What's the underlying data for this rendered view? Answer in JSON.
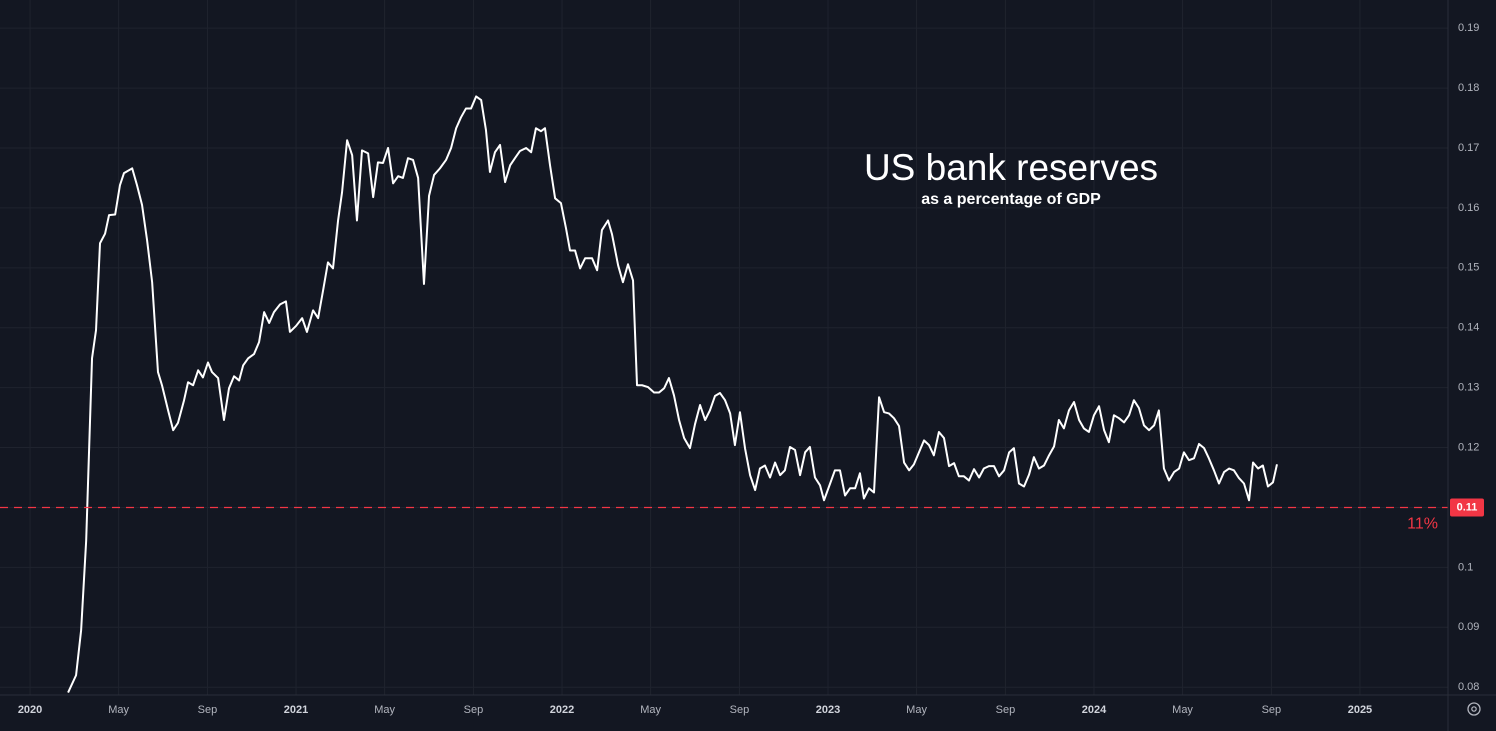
{
  "chart_data": {
    "type": "line",
    "title": "US bank reserves",
    "subtitle": "as a percentage of GDP",
    "x": [
      2020.143,
      2020.173,
      2020.192,
      2020.211,
      2020.233,
      2020.248,
      2020.263,
      2020.282,
      2020.297,
      2020.32,
      2020.338,
      2020.353,
      2020.384,
      2020.402,
      2020.421,
      2020.44,
      2020.459,
      2020.481,
      2020.496,
      2020.519,
      2020.538,
      2020.556,
      2020.579,
      2020.594,
      2020.613,
      2020.632,
      2020.65,
      2020.669,
      2020.684,
      2020.707,
      2020.729,
      2020.748,
      2020.767,
      2020.786,
      2020.801,
      2020.82,
      2020.842,
      2020.861,
      2020.88,
      2020.899,
      2020.917,
      2020.94,
      2020.962,
      2020.977,
      2021.0,
      2021.023,
      2021.041,
      2021.064,
      2021.083,
      2021.102,
      2021.12,
      2021.139,
      2021.158,
      2021.173,
      2021.192,
      2021.211,
      2021.229,
      2021.248,
      2021.271,
      2021.29,
      2021.308,
      2021.327,
      2021.346,
      2021.365,
      2021.384,
      2021.402,
      2021.421,
      2021.44,
      2021.459,
      2021.481,
      2021.5,
      2021.519,
      2021.541,
      2021.564,
      2021.583,
      2021.602,
      2021.62,
      2021.639,
      2021.658,
      2021.677,
      2021.696,
      2021.714,
      2021.729,
      2021.748,
      2021.767,
      2021.786,
      2021.805,
      2021.823,
      2021.842,
      2021.865,
      2021.884,
      2021.902,
      2021.921,
      2021.936,
      2021.955,
      2021.974,
      2021.996,
      2022.015,
      2022.03,
      2022.049,
      2022.068,
      2022.087,
      2022.113,
      2022.132,
      2022.15,
      2022.173,
      2022.188,
      2022.211,
      2022.229,
      2022.248,
      2022.267,
      2022.282,
      2022.301,
      2022.323,
      2022.346,
      2022.365,
      2022.384,
      2022.402,
      2022.421,
      2022.44,
      2022.459,
      2022.481,
      2022.5,
      2022.519,
      2022.538,
      2022.556,
      2022.575,
      2022.594,
      2022.613,
      2022.632,
      2022.65,
      2022.669,
      2022.688,
      2022.707,
      2022.726,
      2022.744,
      2022.763,
      2022.782,
      2022.801,
      2022.82,
      2022.838,
      2022.857,
      2022.876,
      2022.895,
      2022.914,
      2022.932,
      2022.951,
      2022.97,
      2022.985,
      2023.008,
      2023.026,
      2023.045,
      2023.064,
      2023.083,
      2023.102,
      2023.12,
      2023.135,
      2023.154,
      2023.173,
      2023.192,
      2023.211,
      2023.229,
      2023.248,
      2023.267,
      2023.286,
      2023.305,
      2023.323,
      2023.342,
      2023.361,
      2023.38,
      2023.398,
      2023.417,
      2023.436,
      2023.455,
      2023.474,
      2023.492,
      2023.511,
      2023.53,
      2023.549,
      2023.568,
      2023.586,
      2023.605,
      2023.624,
      2023.643,
      2023.662,
      2023.681,
      2023.699,
      2023.718,
      2023.737,
      2023.756,
      2023.774,
      2023.793,
      2023.812,
      2023.831,
      2023.85,
      2023.868,
      2023.887,
      2023.906,
      2023.925,
      2023.944,
      2023.962,
      2023.981,
      2024.0,
      2024.019,
      2024.038,
      2024.056,
      2024.075,
      2024.094,
      2024.113,
      2024.132,
      2024.15,
      2024.169,
      2024.188,
      2024.207,
      2024.226,
      2024.244,
      2024.263,
      2024.282,
      2024.301,
      2024.32,
      2024.338,
      2024.357,
      2024.376,
      2024.395,
      2024.414,
      2024.432,
      2024.451,
      2024.47,
      2024.489,
      2024.508,
      2024.526,
      2024.545,
      2024.564,
      2024.583,
      2024.598,
      2024.617,
      2024.635,
      2024.654,
      2024.673,
      2024.688
    ],
    "series": [
      {
        "color": "#ffffff",
        "values": [
          0.0791,
          0.082,
          0.0895,
          0.1045,
          0.1349,
          0.1396,
          0.1541,
          0.1557,
          0.1588,
          0.1589,
          0.1638,
          0.1658,
          0.1666,
          0.1638,
          0.1605,
          0.1546,
          0.1476,
          0.1326,
          0.1304,
          0.1262,
          0.1229,
          0.1241,
          0.1279,
          0.1309,
          0.1304,
          0.1329,
          0.1317,
          0.1342,
          0.1326,
          0.1316,
          0.1246,
          0.1299,
          0.1319,
          0.1312,
          0.1337,
          0.1349,
          0.1356,
          0.1376,
          0.1426,
          0.1408,
          0.1426,
          0.1439,
          0.1444,
          0.1393,
          0.1403,
          0.1416,
          0.1393,
          0.1429,
          0.1416,
          0.1463,
          0.1509,
          0.1499,
          0.1579,
          0.1626,
          0.1713,
          0.1688,
          0.1579,
          0.1696,
          0.1691,
          0.1618,
          0.1676,
          0.1675,
          0.17,
          0.1641,
          0.1653,
          0.165,
          0.1683,
          0.168,
          0.165,
          0.1473,
          0.162,
          0.1655,
          0.1666,
          0.168,
          0.17,
          0.1733,
          0.1751,
          0.1766,
          0.1766,
          0.1786,
          0.178,
          0.173,
          0.166,
          0.1693,
          0.1705,
          0.1643,
          0.1671,
          0.1683,
          0.1695,
          0.17,
          0.1693,
          0.1733,
          0.1728,
          0.1733,
          0.1671,
          0.1616,
          0.1608,
          0.1566,
          0.1529,
          0.1529,
          0.1499,
          0.1516,
          0.1516,
          0.1496,
          0.1563,
          0.1579,
          0.1556,
          0.1504,
          0.1476,
          0.1506,
          0.1479,
          0.1304,
          0.1304,
          0.1301,
          0.1292,
          0.1292,
          0.1299,
          0.1316,
          0.1287,
          0.1246,
          0.1216,
          0.1199,
          0.1239,
          0.1271,
          0.1246,
          0.1262,
          0.1286,
          0.1291,
          0.1279,
          0.1257,
          0.1204,
          0.1259,
          0.1199,
          0.1154,
          0.1129,
          0.1165,
          0.117,
          0.115,
          0.1175,
          0.1154,
          0.1162,
          0.1201,
          0.1196,
          0.1154,
          0.1192,
          0.1201,
          0.115,
          0.1137,
          0.1112,
          0.114,
          0.1162,
          0.1162,
          0.112,
          0.1132,
          0.1132,
          0.1157,
          0.1115,
          0.1132,
          0.1125,
          0.1284,
          0.1259,
          0.1257,
          0.1249,
          0.1236,
          0.1175,
          0.1162,
          0.1172,
          0.1192,
          0.1212,
          0.1204,
          0.1187,
          0.1226,
          0.1216,
          0.1169,
          0.1174,
          0.1152,
          0.1152,
          0.1145,
          0.1164,
          0.115,
          0.1165,
          0.1169,
          0.1169,
          0.1152,
          0.1162,
          0.1192,
          0.1199,
          0.114,
          0.1135,
          0.1155,
          0.1184,
          0.1165,
          0.117,
          0.1187,
          0.1202,
          0.1246,
          0.1232,
          0.1262,
          0.1276,
          0.1246,
          0.1232,
          0.1226,
          0.1254,
          0.1269,
          0.1229,
          0.1209,
          0.1254,
          0.1249,
          0.1242,
          0.1254,
          0.1279,
          0.1266,
          0.1237,
          0.1229,
          0.1237,
          0.1262,
          0.1165,
          0.1145,
          0.1159,
          0.1165,
          0.1192,
          0.1179,
          0.1182,
          0.1206,
          0.1199,
          0.1182,
          0.1162,
          0.114,
          0.1159,
          0.1165,
          0.1162,
          0.1149,
          0.114,
          0.1112,
          0.1175,
          0.1165,
          0.117,
          0.1135,
          0.1142,
          0.1172
        ]
      }
    ],
    "xlim": [
      2019.887,
      2025.331
    ],
    "xticks": [
      2020,
      {
        "value": 2020.333,
        "label": "May"
      },
      {
        "value": 2020.667,
        "label": "Sep"
      },
      2021,
      {
        "value": 2021.333,
        "label": "May"
      },
      {
        "value": 2021.667,
        "label": "Sep"
      },
      2022,
      {
        "value": 2022.333,
        "label": "May"
      },
      {
        "value": 2022.667,
        "label": "Sep"
      },
      2023,
      {
        "value": 2023.333,
        "label": "May"
      },
      {
        "value": 2023.667,
        "label": "Sep"
      },
      2024,
      {
        "value": 2024.333,
        "label": "May"
      },
      {
        "value": 2024.667,
        "label": "Sep"
      },
      2025
    ],
    "ylim": [
      0.0787,
      0.1947
    ],
    "yticks": [
      0.08,
      0.09,
      0.1,
      0.11,
      0.12,
      0.13,
      0.14,
      0.15,
      0.16,
      0.17,
      0.18,
      0.19
    ],
    "grid": true,
    "reference_line": {
      "value": 0.11,
      "label": "11%",
      "color": "#f23645"
    }
  }
}
